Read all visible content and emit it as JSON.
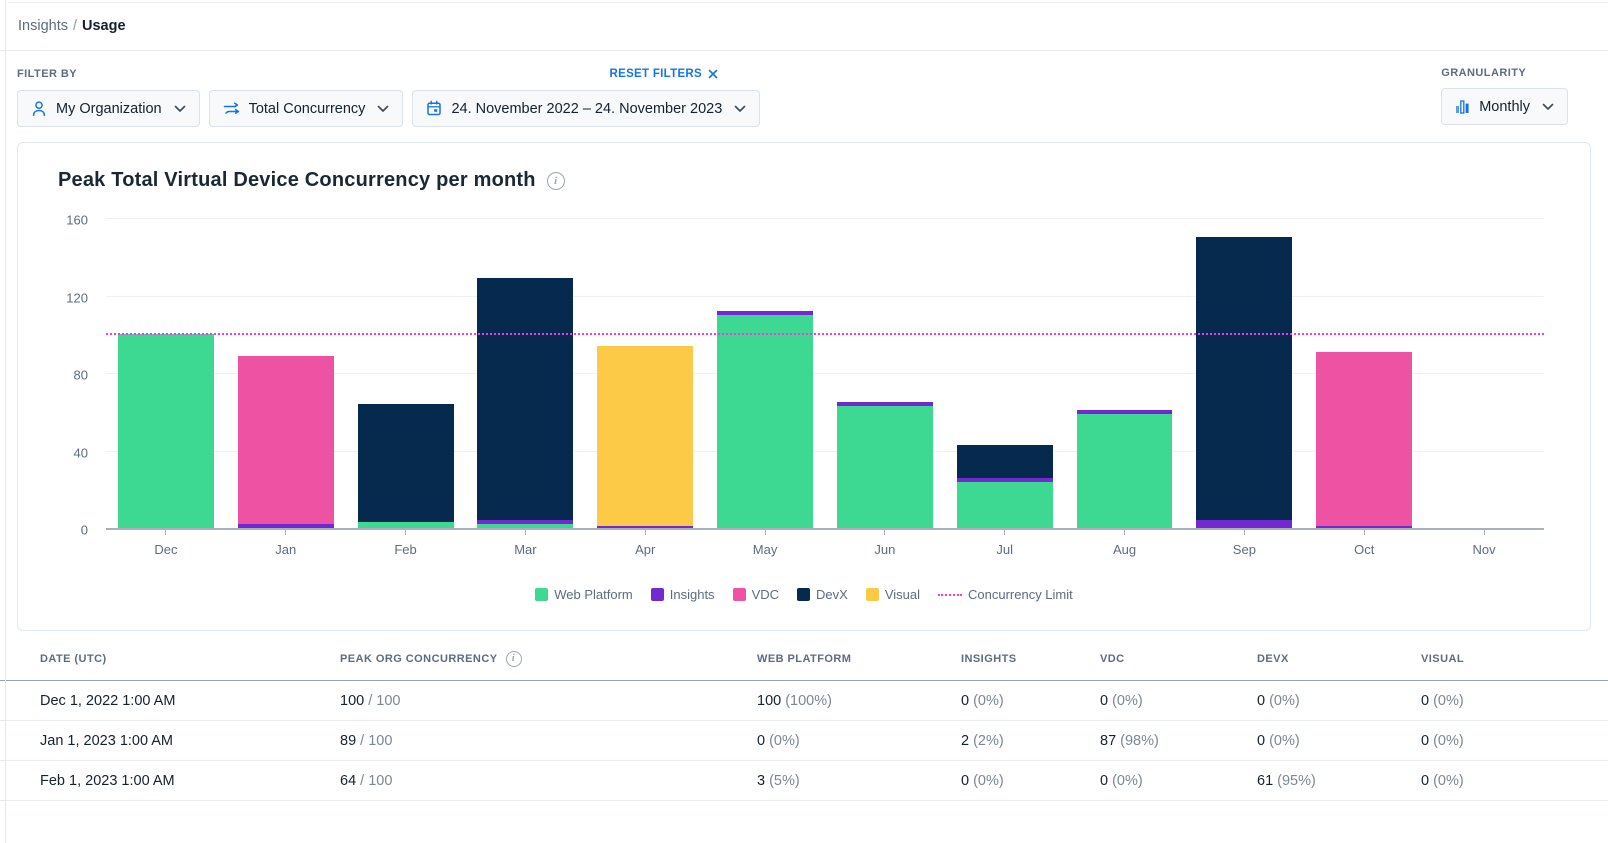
{
  "breadcrumb": {
    "parent": "Insights",
    "separator": "/",
    "current": "Usage"
  },
  "filters": {
    "label": "FILTER BY",
    "reset_label": "RESET FILTERS",
    "organization": {
      "icon": "user-icon",
      "value": "My Organization"
    },
    "metric": {
      "icon": "swap-arrows-icon",
      "value": "Total Concurrency"
    },
    "date_range": {
      "icon": "calendar-icon",
      "value": "24. November 2022 – 24. November 2023"
    },
    "granularity": {
      "label": "GRANULARITY",
      "icon": "bar-chart-icon",
      "value": "Monthly"
    }
  },
  "chart": {
    "title": "Peak Total Virtual Device Concurrency per month",
    "info_icon": "i"
  },
  "chart_data": {
    "type": "bar",
    "stacked": true,
    "title": "Peak Total Virtual Device Concurrency per month",
    "xlabel": "",
    "ylabel": "",
    "ylim": [
      0,
      160
    ],
    "yticks": [
      0,
      40,
      80,
      120,
      160
    ],
    "grid": true,
    "legend_position": "bottom",
    "categories": [
      "Dec",
      "Jan",
      "Feb",
      "Mar",
      "Apr",
      "May",
      "Jun",
      "Jul",
      "Aug",
      "Sep",
      "Oct",
      "Nov"
    ],
    "series": [
      {
        "name": "Web Platform",
        "color": "#3dd992",
        "values": [
          100,
          0,
          3,
          2,
          0,
          110,
          63,
          24,
          59,
          0,
          0,
          0
        ]
      },
      {
        "name": "Insights",
        "color": "#7229d1",
        "values": [
          0,
          2,
          0,
          2,
          1,
          2,
          2,
          2,
          2,
          4,
          1,
          0
        ]
      },
      {
        "name": "VDC",
        "color": "#ee52a3",
        "values": [
          0,
          87,
          0,
          0,
          0,
          0,
          0,
          0,
          0,
          0,
          90,
          0
        ]
      },
      {
        "name": "DevX",
        "color": "#052a4e",
        "values": [
          0,
          0,
          61,
          125,
          0,
          0,
          0,
          17,
          0,
          146,
          0,
          0
        ]
      },
      {
        "name": "Visual",
        "color": "#fcca47",
        "values": [
          0,
          0,
          0,
          0,
          93,
          0,
          0,
          0,
          0,
          0,
          0,
          0
        ]
      }
    ],
    "concurrency_limit": {
      "label": "Concurrency Limit",
      "value": 100,
      "color": "#ee3bee"
    }
  },
  "table": {
    "columns": [
      "DATE (UTC)",
      "PEAK ORG CONCURRENCY",
      "WEB PLATFORM",
      "INSIGHTS",
      "VDC",
      "DEVX",
      "VISUAL"
    ],
    "rows": [
      {
        "date": "Dec 1, 2022 1:00 AM",
        "peak": "100",
        "limit": "100",
        "values": [
          {
            "count": "100",
            "pct": "(100%)"
          },
          {
            "count": "0",
            "pct": "(0%)"
          },
          {
            "count": "0",
            "pct": "(0%)"
          },
          {
            "count": "0",
            "pct": "(0%)"
          },
          {
            "count": "0",
            "pct": "(0%)"
          }
        ]
      },
      {
        "date": "Jan 1, 2023 1:00 AM",
        "peak": "89",
        "limit": "100",
        "values": [
          {
            "count": "0",
            "pct": "(0%)"
          },
          {
            "count": "2",
            "pct": "(2%)"
          },
          {
            "count": "87",
            "pct": "(98%)"
          },
          {
            "count": "0",
            "pct": "(0%)"
          },
          {
            "count": "0",
            "pct": "(0%)"
          }
        ]
      },
      {
        "date": "Feb 1, 2023 1:00 AM",
        "peak": "64",
        "limit": "100",
        "values": [
          {
            "count": "3",
            "pct": "(5%)"
          },
          {
            "count": "0",
            "pct": "(0%)"
          },
          {
            "count": "0",
            "pct": "(0%)"
          },
          {
            "count": "61",
            "pct": "(95%)"
          },
          {
            "count": "0",
            "pct": "(0%)"
          }
        ]
      }
    ]
  }
}
